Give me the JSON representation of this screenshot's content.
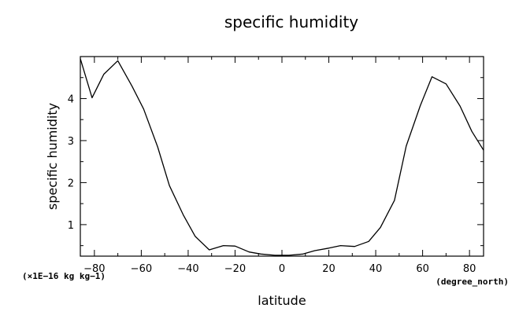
{
  "chart_data": {
    "type": "line",
    "title": "specific humidity",
    "xlabel": "latitude",
    "ylabel": "specific humidity",
    "x_unit": "(degree_north)",
    "y_unit": "(×1E−16 kg kg−1)",
    "xlim": [
      -86,
      86
    ],
    "ylim": [
      0.25,
      5.0
    ],
    "xticks": [
      -80,
      -60,
      -40,
      -20,
      0,
      20,
      40,
      60,
      80
    ],
    "xtick_labels": [
      "−80",
      "−60",
      "−40",
      "−20",
      "0",
      "20",
      "40",
      "60",
      "80"
    ],
    "yticks": [
      1,
      2,
      3,
      4
    ],
    "ytick_labels": [
      "1",
      "2",
      "3",
      "4"
    ],
    "grid": false,
    "series": [
      {
        "x": [
          -86,
          -81,
          -76,
          -70,
          -64,
          -59,
          -53,
          -48,
          -42,
          -37,
          -31,
          -25,
          -20,
          -14,
          -9,
          -3,
          3,
          9,
          14,
          20,
          25,
          31,
          37,
          42,
          48,
          53,
          59,
          64,
          70,
          76,
          81,
          86
        ],
        "y": [
          4.95,
          4.02,
          4.58,
          4.9,
          4.3,
          3.75,
          2.85,
          1.93,
          1.22,
          0.72,
          0.4,
          0.5,
          0.49,
          0.35,
          0.3,
          0.27,
          0.27,
          0.3,
          0.38,
          0.44,
          0.5,
          0.48,
          0.6,
          0.93,
          1.58,
          2.87,
          3.83,
          4.52,
          4.35,
          3.82,
          3.22,
          2.77
        ]
      }
    ]
  }
}
